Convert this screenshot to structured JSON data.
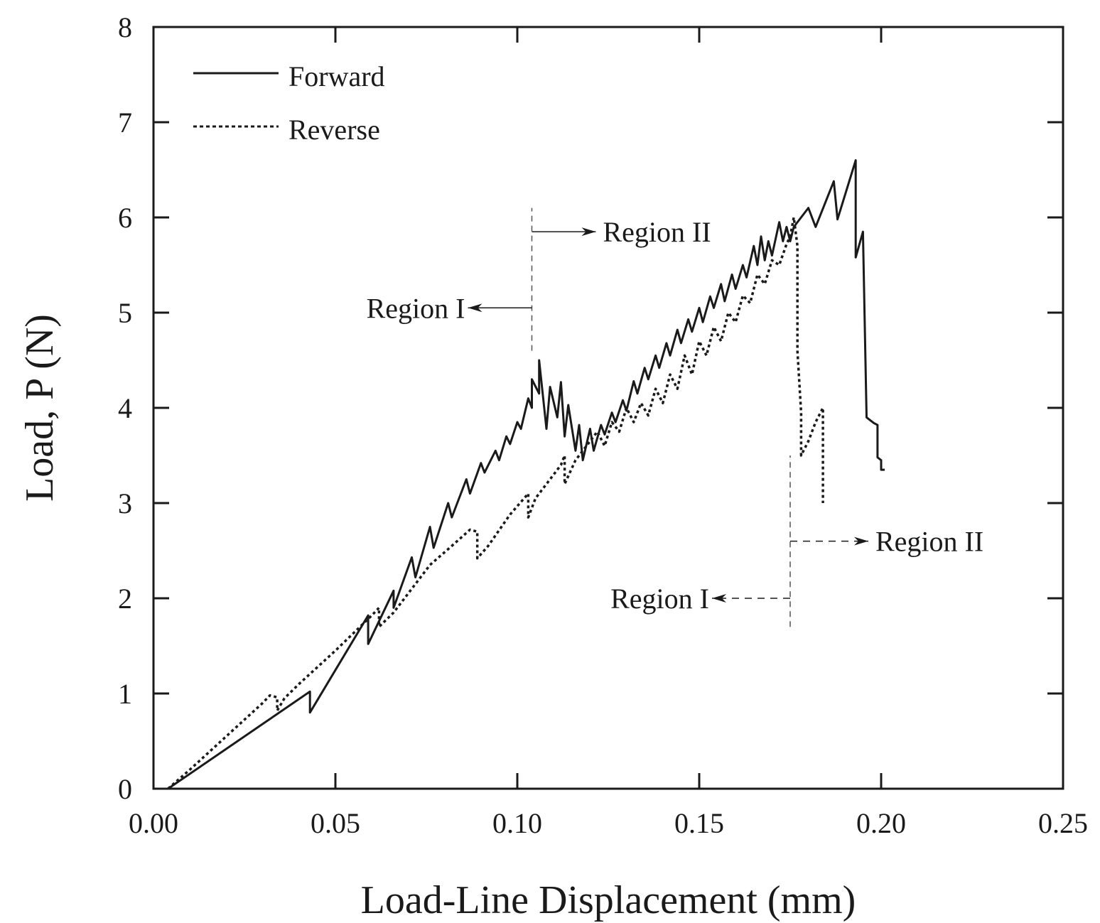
{
  "chart_data": {
    "type": "line",
    "xlabel": "Load-Line Displacement (mm)",
    "ylabel": "Load, P (N)",
    "xlim": [
      0,
      0.25
    ],
    "ylim": [
      0,
      8
    ],
    "xticks": [
      "0.00",
      "0.05",
      "0.10",
      "0.15",
      "0.20",
      "0.25"
    ],
    "yticks": [
      "0",
      "1",
      "2",
      "3",
      "4",
      "5",
      "6",
      "7",
      "8"
    ],
    "grid": false,
    "legend_position": "top-left",
    "series": [
      {
        "name": "Forward",
        "style": "solid",
        "x": [
          0.004,
          0.043,
          0.043,
          0.059,
          0.059,
          0.066,
          0.066,
          0.071,
          0.072,
          0.076,
          0.077,
          0.081,
          0.082,
          0.086,
          0.087,
          0.09,
          0.091,
          0.094,
          0.095,
          0.097,
          0.098,
          0.1,
          0.101,
          0.103,
          0.104,
          0.104,
          0.106,
          0.106,
          0.108,
          0.109,
          0.111,
          0.112,
          0.113,
          0.114,
          0.116,
          0.117,
          0.118,
          0.12,
          0.121,
          0.123,
          0.124,
          0.126,
          0.127,
          0.129,
          0.13,
          0.132,
          0.133,
          0.135,
          0.136,
          0.138,
          0.139,
          0.141,
          0.142,
          0.144,
          0.145,
          0.147,
          0.148,
          0.15,
          0.151,
          0.153,
          0.154,
          0.156,
          0.157,
          0.159,
          0.16,
          0.162,
          0.163,
          0.165,
          0.166,
          0.167,
          0.168,
          0.169,
          0.17,
          0.172,
          0.173,
          0.174,
          0.175,
          0.176,
          0.18,
          0.182,
          0.187,
          0.188,
          0.193,
          0.193,
          0.195,
          0.196,
          0.197,
          0.198,
          0.199,
          0.199,
          0.2,
          0.2,
          0.201
        ],
        "y": [
          0.0,
          1.02,
          0.8,
          1.82,
          1.52,
          2.08,
          1.9,
          2.43,
          2.22,
          2.75,
          2.53,
          3.0,
          2.85,
          3.25,
          3.1,
          3.42,
          3.32,
          3.55,
          3.45,
          3.7,
          3.62,
          3.85,
          3.78,
          4.1,
          4.0,
          4.3,
          4.15,
          4.5,
          3.78,
          4.22,
          3.9,
          4.27,
          3.7,
          4.03,
          3.55,
          3.82,
          3.45,
          3.78,
          3.55,
          3.82,
          3.72,
          3.95,
          3.85,
          4.08,
          3.97,
          4.28,
          4.15,
          4.42,
          4.3,
          4.55,
          4.42,
          4.68,
          4.55,
          4.82,
          4.68,
          4.93,
          4.8,
          5.05,
          4.9,
          5.17,
          5.05,
          5.3,
          5.12,
          5.4,
          5.25,
          5.5,
          5.37,
          5.7,
          5.5,
          5.8,
          5.55,
          5.75,
          5.6,
          5.95,
          5.75,
          5.9,
          5.75,
          5.9,
          6.1,
          5.9,
          6.38,
          5.98,
          6.6,
          5.58,
          5.85,
          3.9,
          3.87,
          3.84,
          3.82,
          3.48,
          3.45,
          3.35,
          3.35
        ]
      },
      {
        "name": "Reverse",
        "style": "dotted",
        "x": [
          0.004,
          0.01,
          0.02,
          0.03,
          0.032,
          0.034,
          0.034,
          0.036,
          0.04,
          0.05,
          0.06,
          0.062,
          0.062,
          0.066,
          0.07,
          0.076,
          0.082,
          0.087,
          0.089,
          0.089,
          0.092,
          0.098,
          0.103,
          0.103,
          0.105,
          0.108,
          0.112,
          0.113,
          0.113,
          0.116,
          0.118,
          0.12,
          0.122,
          0.124,
          0.126,
          0.128,
          0.13,
          0.132,
          0.134,
          0.136,
          0.138,
          0.14,
          0.142,
          0.144,
          0.146,
          0.148,
          0.15,
          0.152,
          0.154,
          0.156,
          0.158,
          0.16,
          0.162,
          0.164,
          0.166,
          0.168,
          0.17,
          0.172,
          0.174,
          0.175,
          0.176,
          0.177,
          0.177,
          0.178,
          0.178,
          0.18,
          0.182,
          0.184,
          0.184
        ],
        "y": [
          0.0,
          0.2,
          0.55,
          0.9,
          0.98,
          0.96,
          0.82,
          0.95,
          1.1,
          1.45,
          1.82,
          1.9,
          1.7,
          1.85,
          2.05,
          2.35,
          2.55,
          2.72,
          2.7,
          2.42,
          2.55,
          2.88,
          3.1,
          2.85,
          3.05,
          3.2,
          3.4,
          3.5,
          3.2,
          3.45,
          3.55,
          3.65,
          3.75,
          3.6,
          3.85,
          3.75,
          4.0,
          3.85,
          4.05,
          3.92,
          4.2,
          4.05,
          4.35,
          4.2,
          4.55,
          4.35,
          4.7,
          4.55,
          4.85,
          4.7,
          5.0,
          4.9,
          5.18,
          5.1,
          5.4,
          5.3,
          5.55,
          5.5,
          5.72,
          5.8,
          6.0,
          5.7,
          4.6,
          3.95,
          3.5,
          3.65,
          3.85,
          4.0,
          3.0
        ]
      }
    ],
    "annotations": [
      {
        "text": "Region I",
        "series": "Forward",
        "x": 0.104,
        "y": 5.05,
        "direction": "left"
      },
      {
        "text": "Region II",
        "series": "Forward",
        "x": 0.104,
        "y": 5.85,
        "direction": "right"
      },
      {
        "text": "Region I",
        "series": "Reverse",
        "x": 0.175,
        "y": 2.0,
        "direction": "left"
      },
      {
        "text": "Region II",
        "series": "Reverse",
        "x": 0.175,
        "y": 2.6,
        "direction": "right"
      }
    ],
    "divider_lines": [
      {
        "series": "Forward",
        "x": 0.104,
        "y_from": 4.6,
        "y_to": 6.1
      },
      {
        "series": "Reverse",
        "x": 0.175,
        "y_from": 1.7,
        "y_to": 3.5
      }
    ]
  }
}
